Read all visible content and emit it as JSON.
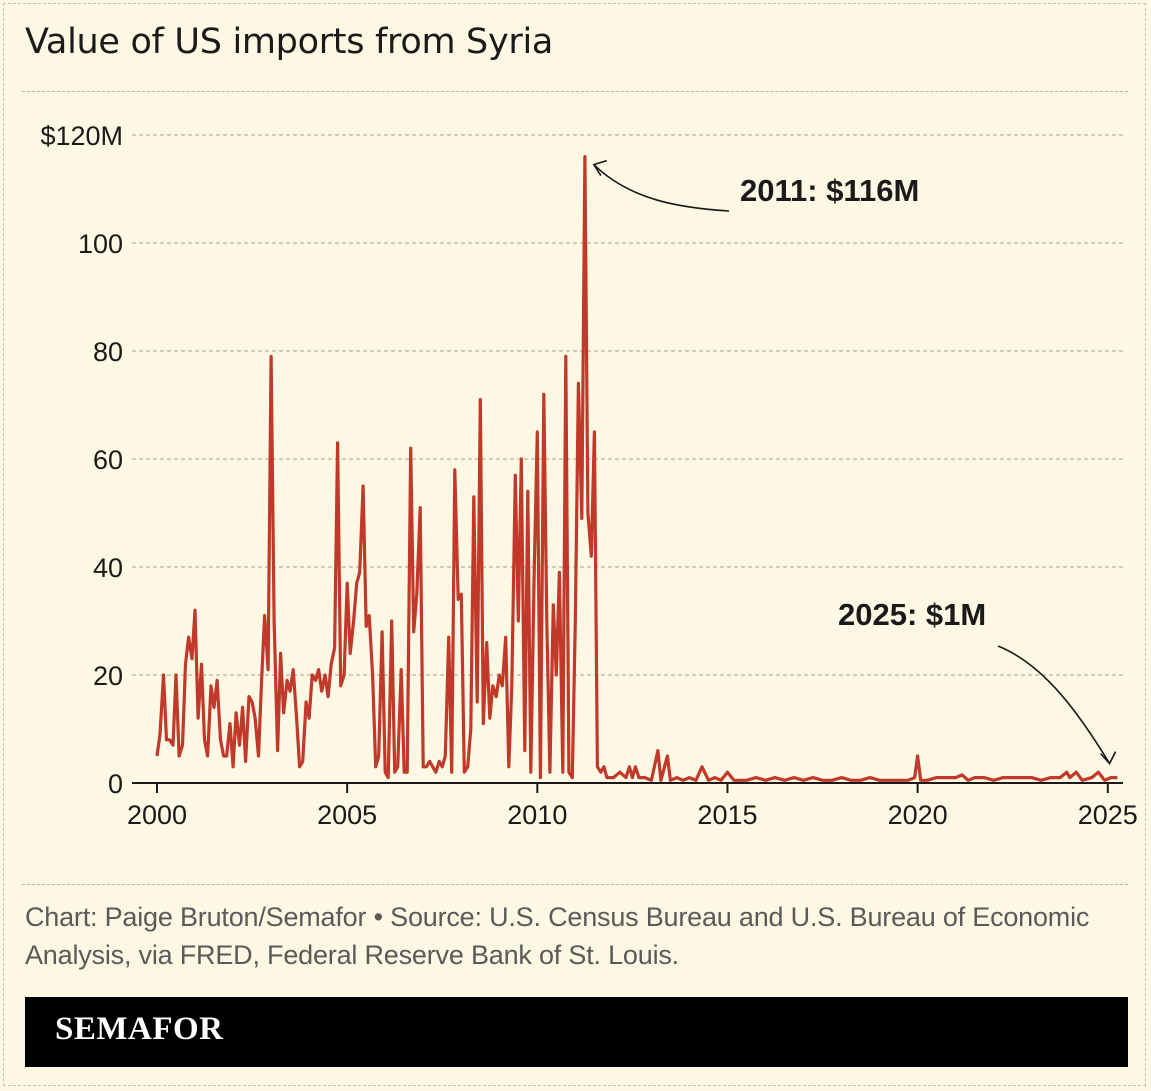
{
  "chart_data": {
    "type": "line",
    "title": "Value of US imports from Syria",
    "xlabel": "",
    "ylabel": "",
    "xlim": [
      2000,
      2025.4
    ],
    "ylim": [
      0,
      120
    ],
    "x_ticks": [
      2000,
      2005,
      2010,
      2015,
      2020,
      2025
    ],
    "y_ticks": [
      0,
      20,
      40,
      60,
      80,
      100,
      120
    ],
    "y_tick_labels": [
      "0",
      "20",
      "40",
      "60",
      "80",
      "100",
      "$120M"
    ],
    "grid": "horizontal dashed",
    "series": [
      {
        "name": "Value of US imports from Syria ($M, monthly)",
        "color": "#c0392b",
        "points": [
          [
            2000.0,
            5
          ],
          [
            2000.08,
            9
          ],
          [
            2000.17,
            20
          ],
          [
            2000.25,
            8
          ],
          [
            2000.33,
            8
          ],
          [
            2000.42,
            7
          ],
          [
            2000.5,
            20
          ],
          [
            2000.58,
            5
          ],
          [
            2000.67,
            7
          ],
          [
            2000.75,
            22
          ],
          [
            2000.83,
            27
          ],
          [
            2000.92,
            23
          ],
          [
            2001.0,
            32
          ],
          [
            2001.08,
            12
          ],
          [
            2001.17,
            22
          ],
          [
            2001.25,
            8
          ],
          [
            2001.33,
            5
          ],
          [
            2001.42,
            18
          ],
          [
            2001.5,
            14
          ],
          [
            2001.58,
            19
          ],
          [
            2001.67,
            8
          ],
          [
            2001.75,
            5
          ],
          [
            2001.83,
            5
          ],
          [
            2001.92,
            11
          ],
          [
            2002.0,
            3
          ],
          [
            2002.08,
            13
          ],
          [
            2002.17,
            7
          ],
          [
            2002.25,
            14
          ],
          [
            2002.33,
            4
          ],
          [
            2002.42,
            16
          ],
          [
            2002.5,
            15
          ],
          [
            2002.58,
            12
          ],
          [
            2002.67,
            5
          ],
          [
            2002.75,
            19
          ],
          [
            2002.83,
            31
          ],
          [
            2002.92,
            21
          ],
          [
            2003.0,
            79
          ],
          [
            2003.08,
            30
          ],
          [
            2003.17,
            6
          ],
          [
            2003.25,
            24
          ],
          [
            2003.33,
            13
          ],
          [
            2003.42,
            19
          ],
          [
            2003.5,
            17
          ],
          [
            2003.58,
            21
          ],
          [
            2003.67,
            12
          ],
          [
            2003.75,
            3
          ],
          [
            2003.83,
            4
          ],
          [
            2003.92,
            15
          ],
          [
            2004.0,
            12
          ],
          [
            2004.08,
            20
          ],
          [
            2004.17,
            19
          ],
          [
            2004.25,
            21
          ],
          [
            2004.33,
            17
          ],
          [
            2004.42,
            20
          ],
          [
            2004.5,
            16
          ],
          [
            2004.58,
            22
          ],
          [
            2004.67,
            25
          ],
          [
            2004.75,
            63
          ],
          [
            2004.83,
            18
          ],
          [
            2004.92,
            20
          ],
          [
            2005.0,
            37
          ],
          [
            2005.08,
            24
          ],
          [
            2005.17,
            30
          ],
          [
            2005.25,
            37
          ],
          [
            2005.33,
            39
          ],
          [
            2005.42,
            55
          ],
          [
            2005.5,
            29
          ],
          [
            2005.58,
            31
          ],
          [
            2005.67,
            20
          ],
          [
            2005.75,
            3
          ],
          [
            2005.83,
            5
          ],
          [
            2005.92,
            28
          ],
          [
            2006.0,
            2
          ],
          [
            2006.08,
            1
          ],
          [
            2006.17,
            30
          ],
          [
            2006.25,
            2
          ],
          [
            2006.33,
            3
          ],
          [
            2006.42,
            21
          ],
          [
            2006.5,
            2
          ],
          [
            2006.58,
            2
          ],
          [
            2006.67,
            62
          ],
          [
            2006.75,
            28
          ],
          [
            2006.83,
            35
          ],
          [
            2006.92,
            51
          ],
          [
            2007.0,
            3
          ],
          [
            2007.08,
            3
          ],
          [
            2007.17,
            4
          ],
          [
            2007.25,
            3
          ],
          [
            2007.33,
            2
          ],
          [
            2007.42,
            4
          ],
          [
            2007.5,
            3
          ],
          [
            2007.58,
            5
          ],
          [
            2007.67,
            27
          ],
          [
            2007.75,
            2
          ],
          [
            2007.83,
            58
          ],
          [
            2007.92,
            34
          ],
          [
            2008.0,
            35
          ],
          [
            2008.08,
            2
          ],
          [
            2008.17,
            3
          ],
          [
            2008.25,
            10
          ],
          [
            2008.33,
            53
          ],
          [
            2008.42,
            15
          ],
          [
            2008.5,
            71
          ],
          [
            2008.58,
            11
          ],
          [
            2008.67,
            26
          ],
          [
            2008.75,
            12
          ],
          [
            2008.83,
            18
          ],
          [
            2008.92,
            16
          ],
          [
            2009.0,
            20
          ],
          [
            2009.08,
            18
          ],
          [
            2009.17,
            27
          ],
          [
            2009.25,
            3
          ],
          [
            2009.33,
            18
          ],
          [
            2009.42,
            57
          ],
          [
            2009.5,
            30
          ],
          [
            2009.58,
            60
          ],
          [
            2009.67,
            6
          ],
          [
            2009.75,
            54
          ],
          [
            2009.83,
            2
          ],
          [
            2009.92,
            40
          ],
          [
            2010.0,
            65
          ],
          [
            2010.08,
            1
          ],
          [
            2010.17,
            72
          ],
          [
            2010.25,
            30
          ],
          [
            2010.33,
            2
          ],
          [
            2010.42,
            33
          ],
          [
            2010.5,
            20
          ],
          [
            2010.58,
            39
          ],
          [
            2010.67,
            2
          ],
          [
            2010.75,
            79
          ],
          [
            2010.83,
            2
          ],
          [
            2010.92,
            1
          ],
          [
            2011.0,
            30
          ],
          [
            2011.08,
            74
          ],
          [
            2011.17,
            49
          ],
          [
            2011.25,
            116
          ],
          [
            2011.33,
            50
          ],
          [
            2011.42,
            42
          ],
          [
            2011.5,
            65
          ],
          [
            2011.58,
            3
          ],
          [
            2011.67,
            2
          ],
          [
            2011.75,
            3
          ],
          [
            2011.83,
            1
          ],
          [
            2011.92,
            1
          ],
          [
            2012.0,
            1
          ],
          [
            2012.17,
            2
          ],
          [
            2012.33,
            1
          ],
          [
            2012.42,
            3
          ],
          [
            2012.5,
            1
          ],
          [
            2012.58,
            3
          ],
          [
            2012.67,
            1
          ],
          [
            2012.83,
            1
          ],
          [
            2013.0,
            0.5
          ],
          [
            2013.17,
            6
          ],
          [
            2013.25,
            0.5
          ],
          [
            2013.42,
            5
          ],
          [
            2013.5,
            0.5
          ],
          [
            2013.67,
            1
          ],
          [
            2013.83,
            0.5
          ],
          [
            2014.0,
            1
          ],
          [
            2014.17,
            0.5
          ],
          [
            2014.33,
            3
          ],
          [
            2014.5,
            0.5
          ],
          [
            2014.67,
            1
          ],
          [
            2014.83,
            0.5
          ],
          [
            2015.0,
            2
          ],
          [
            2015.17,
            0.5
          ],
          [
            2015.5,
            0.5
          ],
          [
            2015.75,
            1
          ],
          [
            2016.0,
            0.5
          ],
          [
            2016.25,
            1
          ],
          [
            2016.5,
            0.5
          ],
          [
            2016.75,
            1
          ],
          [
            2017.0,
            0.5
          ],
          [
            2017.25,
            1
          ],
          [
            2017.5,
            0.5
          ],
          [
            2017.75,
            0.5
          ],
          [
            2018.0,
            1
          ],
          [
            2018.25,
            0.5
          ],
          [
            2018.5,
            0.5
          ],
          [
            2018.75,
            1
          ],
          [
            2019.0,
            0.5
          ],
          [
            2019.25,
            0.5
          ],
          [
            2019.5,
            0.5
          ],
          [
            2019.75,
            0.5
          ],
          [
            2019.92,
            1
          ],
          [
            2020.0,
            5
          ],
          [
            2020.08,
            0.5
          ],
          [
            2020.25,
            0.5
          ],
          [
            2020.5,
            1
          ],
          [
            2020.75,
            1
          ],
          [
            2021.0,
            1
          ],
          [
            2021.17,
            1.5
          ],
          [
            2021.33,
            0.5
          ],
          [
            2021.5,
            1
          ],
          [
            2021.75,
            1
          ],
          [
            2022.0,
            0.5
          ],
          [
            2022.25,
            1
          ],
          [
            2022.5,
            1
          ],
          [
            2022.75,
            1
          ],
          [
            2023.0,
            1
          ],
          [
            2023.25,
            0.5
          ],
          [
            2023.5,
            1
          ],
          [
            2023.75,
            1
          ],
          [
            2023.92,
            2
          ],
          [
            2024.0,
            1
          ],
          [
            2024.17,
            2
          ],
          [
            2024.33,
            0.5
          ],
          [
            2024.58,
            1
          ],
          [
            2024.75,
            2
          ],
          [
            2024.92,
            0.5
          ],
          [
            2025.08,
            1
          ],
          [
            2025.25,
            1
          ]
        ]
      }
    ],
    "annotations": [
      {
        "text": "2011: $116M",
        "x": 2011.25,
        "y": 116
      },
      {
        "text": "2025: $1M",
        "x": 2025.1,
        "y": 1
      }
    ]
  },
  "footer": {
    "source": "Chart: Paige Bruton/Semafor • Source: U.S. Census Bureau and U.S. Bureau of Economic Analysis, via FRED, Federal Reserve Bank of St. Louis."
  },
  "brand": {
    "name": "SEMAFOR"
  },
  "colors": {
    "background": "#fdf8e4",
    "line": "#c0392b",
    "grid": "#b9b2a0"
  }
}
